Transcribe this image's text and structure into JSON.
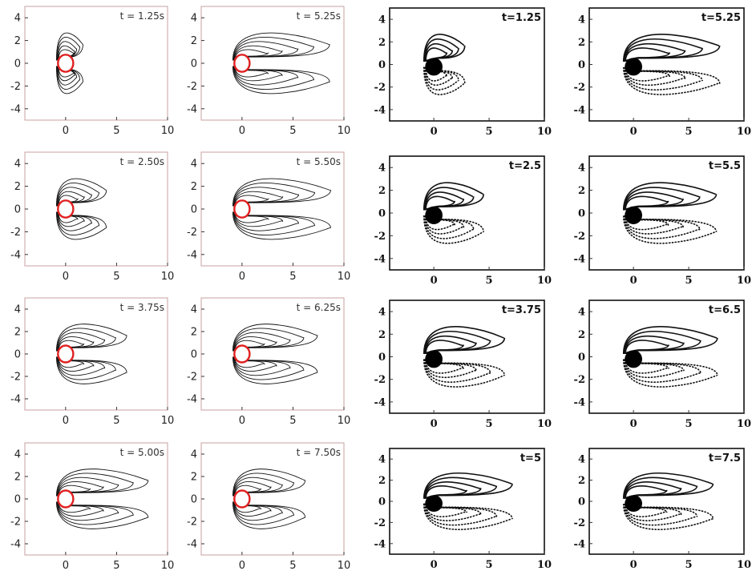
{
  "figure": {
    "left_group": {
      "style": "simulation",
      "xticks": [
        "0",
        "5",
        "10"
      ],
      "yticks": [
        "4",
        "2",
        "0",
        "-2",
        "-4"
      ],
      "panels": [
        {
          "label": "t = 1.25s",
          "length": 1.7
        },
        {
          "label": "t = 5.25s",
          "length": 8.6
        },
        {
          "label": "t = 2.50s",
          "length": 4.0
        },
        {
          "label": "t = 5.50s",
          "length": 8.7
        },
        {
          "label": "t = 3.75s",
          "length": 6.0
        },
        {
          "label": "t = 6.25s",
          "length": 7.4
        },
        {
          "label": "t = 5.00s",
          "length": 8.1
        },
        {
          "label": "t = 7.50s",
          "length": 6.2
        }
      ]
    },
    "right_group": {
      "style": "experiment",
      "xticks": [
        "0",
        "5",
        "10"
      ],
      "yticks": [
        "4",
        "2",
        "0",
        "-2",
        "-4"
      ],
      "panels": [
        {
          "label": "t=1.25",
          "length": 2.8
        },
        {
          "label": "t=5.25",
          "length": 7.8
        },
        {
          "label": "t=2.5",
          "length": 4.5
        },
        {
          "label": "t=5.5",
          "length": 7.5
        },
        {
          "label": "t=3.75",
          "length": 6.4
        },
        {
          "label": "t=6.5",
          "length": 7.6
        },
        {
          "label": "t=5",
          "length": 7.1
        },
        {
          "label": "t=7.5",
          "length": 7.2
        }
      ]
    }
  },
  "chart_data": [
    {
      "type": "contour",
      "panel": "t = 1.25s",
      "xlim": [
        -4,
        10
      ],
      "ylim": [
        -5,
        5
      ],
      "xticks": [
        0,
        5,
        10
      ],
      "yticks": [
        -4,
        -2,
        0,
        2,
        4
      ],
      "contour_extent_x": 1.7
    },
    {
      "type": "contour",
      "panel": "t = 5.25s",
      "xlim": [
        -4,
        10
      ],
      "ylim": [
        -5,
        5
      ],
      "xticks": [
        0,
        5,
        10
      ],
      "yticks": [
        -4,
        -2,
        0,
        2,
        4
      ],
      "contour_extent_x": 8.6
    },
    {
      "type": "contour",
      "panel": "t = 2.50s",
      "xlim": [
        -4,
        10
      ],
      "ylim": [
        -5,
        5
      ],
      "xticks": [
        0,
        5,
        10
      ],
      "yticks": [
        -4,
        -2,
        0,
        2,
        4
      ],
      "contour_extent_x": 4.0
    },
    {
      "type": "contour",
      "panel": "t = 5.50s",
      "xlim": [
        -4,
        10
      ],
      "ylim": [
        -5,
        5
      ],
      "xticks": [
        0,
        5,
        10
      ],
      "yticks": [
        -4,
        -2,
        0,
        2,
        4
      ],
      "contour_extent_x": 8.7
    },
    {
      "type": "contour",
      "panel": "t = 3.75s",
      "xlim": [
        -4,
        10
      ],
      "ylim": [
        -5,
        5
      ],
      "xticks": [
        0,
        5,
        10
      ],
      "yticks": [
        -4,
        -2,
        0,
        2,
        4
      ],
      "contour_extent_x": 6.0
    },
    {
      "type": "contour",
      "panel": "t = 6.25s",
      "xlim": [
        -4,
        10
      ],
      "ylim": [
        -5,
        5
      ],
      "xticks": [
        0,
        5,
        10
      ],
      "yticks": [
        -4,
        -2,
        0,
        2,
        4
      ],
      "contour_extent_x": 7.4
    },
    {
      "type": "contour",
      "panel": "t = 5.00s",
      "xlim": [
        -4,
        10
      ],
      "ylim": [
        -5,
        5
      ],
      "xticks": [
        0,
        5,
        10
      ],
      "yticks": [
        -4,
        -2,
        0,
        2,
        4
      ],
      "contour_extent_x": 8.1
    },
    {
      "type": "contour",
      "panel": "t = 7.50s",
      "xlim": [
        -4,
        10
      ],
      "ylim": [
        -5,
        5
      ],
      "xticks": [
        0,
        5,
        10
      ],
      "yticks": [
        -4,
        -2,
        0,
        2,
        4
      ],
      "contour_extent_x": 6.2
    },
    {
      "type": "contour",
      "panel": "t=1.25",
      "xlim": [
        -4,
        10
      ],
      "ylim": [
        -5,
        5
      ],
      "xticks": [
        0,
        5,
        10
      ],
      "yticks": [
        -4,
        -2,
        0,
        2,
        4
      ],
      "contour_extent_x": 2.8
    },
    {
      "type": "contour",
      "panel": "t=5.25",
      "xlim": [
        -4,
        10
      ],
      "ylim": [
        -5,
        5
      ],
      "xticks": [
        0,
        5,
        10
      ],
      "yticks": [
        -4,
        -2,
        0,
        2,
        4
      ],
      "contour_extent_x": 7.8
    },
    {
      "type": "contour",
      "panel": "t=2.5",
      "xlim": [
        -4,
        10
      ],
      "ylim": [
        -5,
        5
      ],
      "xticks": [
        0,
        5,
        10
      ],
      "yticks": [
        -4,
        -2,
        0,
        2,
        4
      ],
      "contour_extent_x": 4.5
    },
    {
      "type": "contour",
      "panel": "t=5.5",
      "xlim": [
        -4,
        10
      ],
      "ylim": [
        -5,
        5
      ],
      "xticks": [
        0,
        5,
        10
      ],
      "yticks": [
        -4,
        -2,
        0,
        2,
        4
      ],
      "contour_extent_x": 7.5
    },
    {
      "type": "contour",
      "panel": "t=3.75",
      "xlim": [
        -4,
        10
      ],
      "ylim": [
        -5,
        5
      ],
      "xticks": [
        0,
        5,
        10
      ],
      "yticks": [
        -4,
        -2,
        0,
        2,
        4
      ],
      "contour_extent_x": 6.4
    },
    {
      "type": "contour",
      "panel": "t=6.5",
      "xlim": [
        -4,
        10
      ],
      "ylim": [
        -5,
        5
      ],
      "xticks": [
        0,
        5,
        10
      ],
      "yticks": [
        -4,
        -2,
        0,
        2,
        4
      ],
      "contour_extent_x": 7.6
    },
    {
      "type": "contour",
      "panel": "t=5",
      "xlim": [
        -4,
        10
      ],
      "ylim": [
        -5,
        5
      ],
      "xticks": [
        0,
        5,
        10
      ],
      "yticks": [
        -4,
        -2,
        0,
        2,
        4
      ],
      "contour_extent_x": 7.1
    },
    {
      "type": "contour",
      "panel": "t=7.5",
      "xlim": [
        -4,
        10
      ],
      "ylim": [
        -5,
        5
      ],
      "xticks": [
        0,
        5,
        10
      ],
      "yticks": [
        -4,
        -2,
        0,
        2,
        4
      ],
      "contour_extent_x": 7.2
    }
  ]
}
